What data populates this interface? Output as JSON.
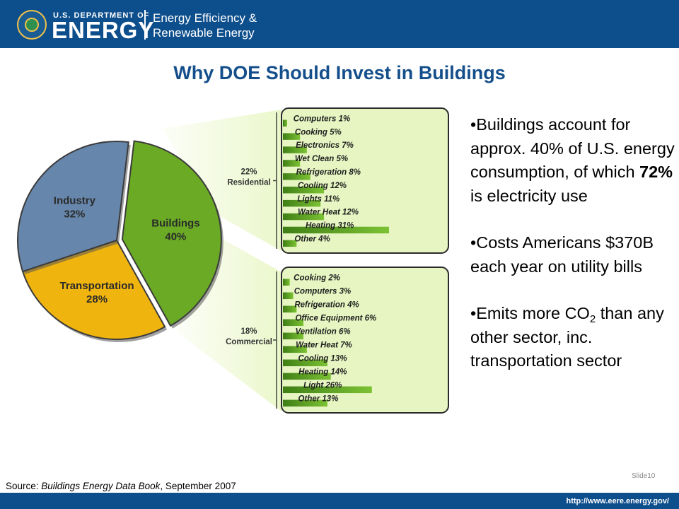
{
  "header": {
    "dept_line": "U.S. DEPARTMENT OF",
    "energy_word": "ENERGY",
    "office_name": "Energy Efficiency &\nRenewable Energy"
  },
  "title": "Why DOE Should Invest in Buildings",
  "colors": {
    "header_bg": "#0d4e8c",
    "title": "#154f8b",
    "buildings": "#6aaa25",
    "industry": "#6786ab",
    "transportation": "#f0b40f",
    "bar_green": "#5f9e23",
    "panel_bg": "#e6f5c2"
  },
  "chart_data": [
    {
      "type": "pie",
      "slices": [
        {
          "label": "Buildings",
          "value": 40,
          "value_label": "40%"
        },
        {
          "label": "Transportation",
          "value": 28,
          "value_label": "28%"
        },
        {
          "label": "Industry",
          "value": 32,
          "value_label": "32%"
        }
      ]
    },
    {
      "type": "bar",
      "group": "Residential",
      "group_value": "22%",
      "categories": [
        "Computers",
        "Cooking",
        "Electronics",
        "Wet Clean",
        "Refrigeration",
        "Cooling",
        "Lights",
        "Water Heat",
        "Heating",
        "Other"
      ],
      "values": [
        1,
        5,
        7,
        5,
        8,
        12,
        11,
        12,
        31,
        4
      ]
    },
    {
      "type": "bar",
      "group": "Commercial",
      "group_value": "18%",
      "categories": [
        "Cooking",
        "Computers",
        "Refrigeration",
        "Office Equipment",
        "Ventilation",
        "Water Heat",
        "Cooling",
        "Heating",
        "Light",
        "Other"
      ],
      "values": [
        2,
        3,
        4,
        6,
        6,
        7,
        13,
        14,
        26,
        13
      ]
    }
  ],
  "bullets": {
    "b1_pre": "•Buildings account for approx. 40% of U.S. energy consumption, of which ",
    "b1_bold": "72%",
    "b1_post": " is electricity use",
    "b2": "•Costs Americans $370B each year on utility bills",
    "b3_pre": "•Emits more CO",
    "b3_sub": "2",
    "b3_post": " than any other sector, inc. transportation sector"
  },
  "footer": {
    "source_prefix": "Source: ",
    "source_title": "Buildings Energy Data Book",
    "source_suffix": ", September 2007",
    "slide_number": "Slide10",
    "url": "http://www.eere.energy.gov/"
  }
}
